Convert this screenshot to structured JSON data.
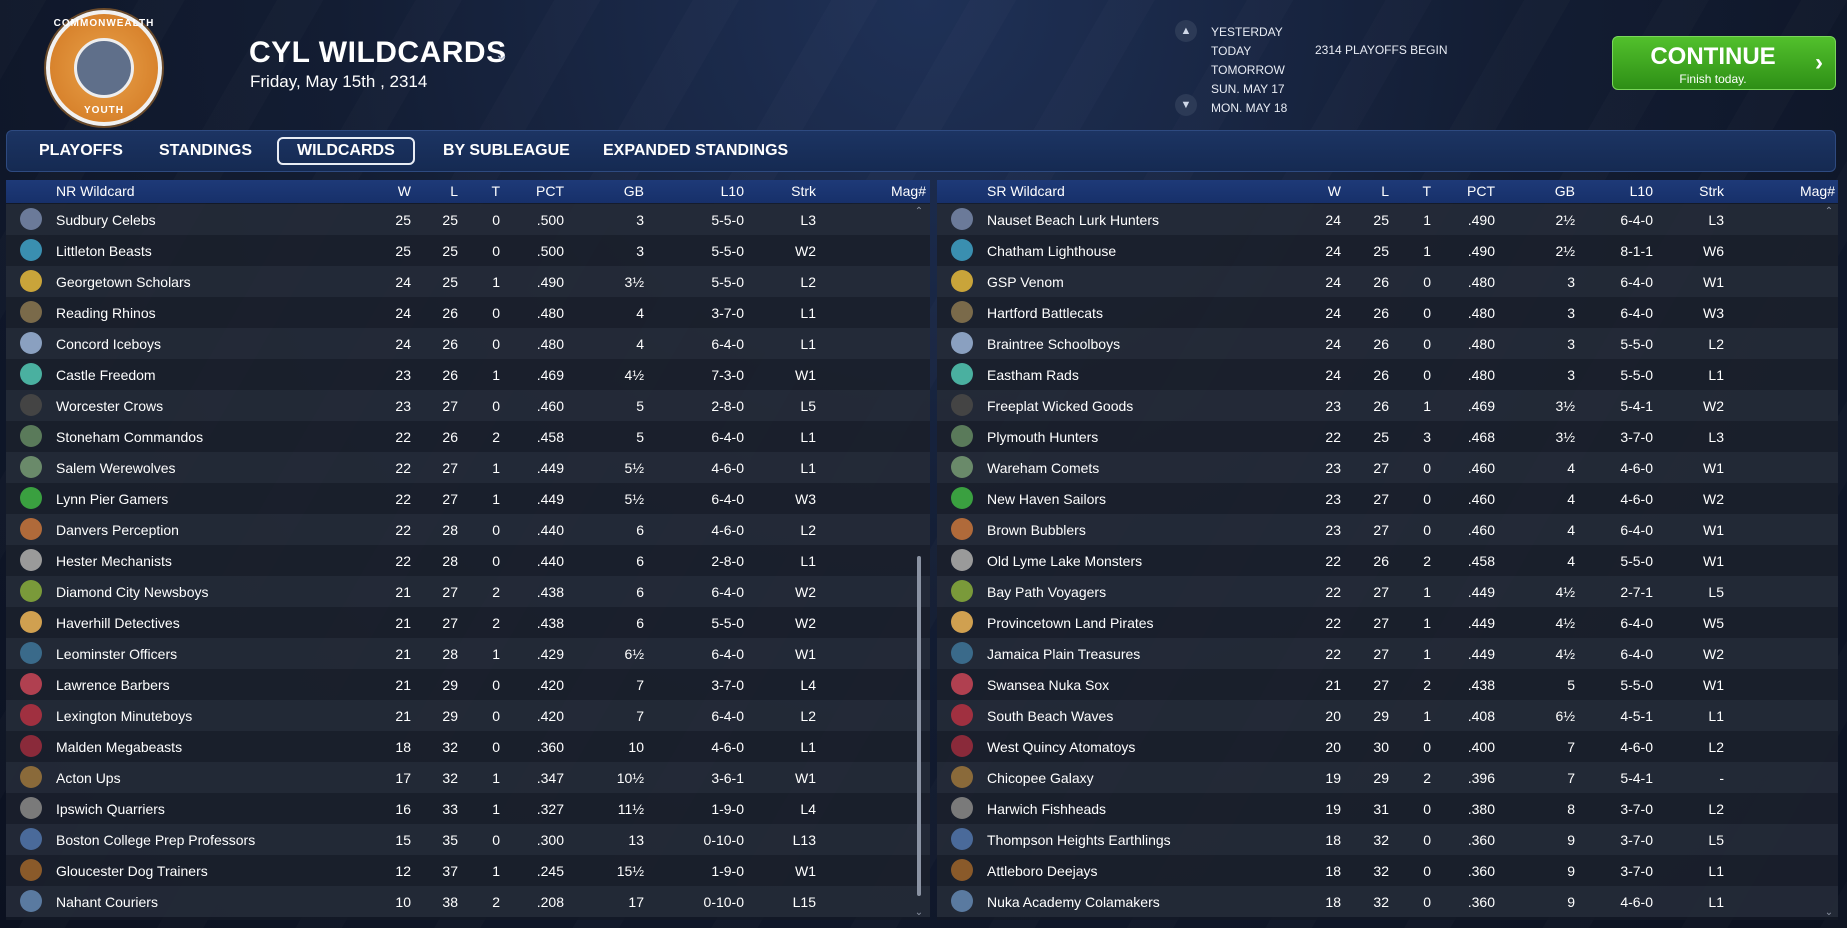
{
  "header": {
    "logo_top": "COMMONWEALTH",
    "logo_bottom": "YOUTH",
    "title": "CYL WILDCARDS",
    "date": "Friday, May 15th , 2314",
    "dates": [
      "YESTERDAY",
      "TODAY",
      "TOMORROW",
      "SUN. MAY 17",
      "MON. MAY 18"
    ],
    "event": "2314 PLAYOFFS BEGIN",
    "continue_label": "CONTINUE",
    "continue_sub": "Finish today."
  },
  "tabs": [
    "PLAYOFFS",
    "STANDINGS",
    "WILDCARDS",
    "BY SUBLEAGUE",
    "EXPANDED STANDINGS"
  ],
  "active_tab": "WILDCARDS",
  "columns": [
    "W",
    "L",
    "T",
    "PCT",
    "GB",
    "L10",
    "Strk",
    "Mag#"
  ],
  "left": {
    "title": "NR  Wildcard",
    "rows": [
      [
        "Sudbury Celebs",
        "25",
        "25",
        "0",
        ".500",
        "3",
        "5-5-0",
        "L3"
      ],
      [
        "Littleton Beasts",
        "25",
        "25",
        "0",
        ".500",
        "3",
        "5-5-0",
        "W2"
      ],
      [
        "Georgetown Scholars",
        "24",
        "25",
        "1",
        ".490",
        "3½",
        "5-5-0",
        "L2"
      ],
      [
        "Reading Rhinos",
        "24",
        "26",
        "0",
        ".480",
        "4",
        "3-7-0",
        "L1"
      ],
      [
        "Concord Iceboys",
        "24",
        "26",
        "0",
        ".480",
        "4",
        "6-4-0",
        "L1"
      ],
      [
        "Castle Freedom",
        "23",
        "26",
        "1",
        ".469",
        "4½",
        "7-3-0",
        "W1"
      ],
      [
        "Worcester Crows",
        "23",
        "27",
        "0",
        ".460",
        "5",
        "2-8-0",
        "L5"
      ],
      [
        "Stoneham Commandos",
        "22",
        "26",
        "2",
        ".458",
        "5",
        "6-4-0",
        "L1"
      ],
      [
        "Salem Werewolves",
        "22",
        "27",
        "1",
        ".449",
        "5½",
        "4-6-0",
        "L1"
      ],
      [
        "Lynn Pier Gamers",
        "22",
        "27",
        "1",
        ".449",
        "5½",
        "6-4-0",
        "W3"
      ],
      [
        "Danvers Perception",
        "22",
        "28",
        "0",
        ".440",
        "6",
        "4-6-0",
        "L2"
      ],
      [
        "Hester Mechanists",
        "22",
        "28",
        "0",
        ".440",
        "6",
        "2-8-0",
        "L1"
      ],
      [
        "Diamond City Newsboys",
        "21",
        "27",
        "2",
        ".438",
        "6",
        "6-4-0",
        "W2"
      ],
      [
        "Haverhill Detectives",
        "21",
        "27",
        "2",
        ".438",
        "6",
        "5-5-0",
        "W2"
      ],
      [
        "Leominster Officers",
        "21",
        "28",
        "1",
        ".429",
        "6½",
        "6-4-0",
        "W1"
      ],
      [
        "Lawrence Barbers",
        "21",
        "29",
        "0",
        ".420",
        "7",
        "3-7-0",
        "L4"
      ],
      [
        "Lexington Minuteboys",
        "21",
        "29",
        "0",
        ".420",
        "7",
        "6-4-0",
        "L2"
      ],
      [
        "Malden Megabeasts",
        "18",
        "32",
        "0",
        ".360",
        "10",
        "4-6-0",
        "L1"
      ],
      [
        "Acton Ups",
        "17",
        "32",
        "1",
        ".347",
        "10½",
        "3-6-1",
        "W1"
      ],
      [
        "Ipswich Quarriers",
        "16",
        "33",
        "1",
        ".327",
        "11½",
        "1-9-0",
        "L4"
      ],
      [
        "Boston College Prep Professors",
        "15",
        "35",
        "0",
        ".300",
        "13",
        "0-10-0",
        "L13"
      ],
      [
        "Gloucester Dog Trainers",
        "12",
        "37",
        "1",
        ".245",
        "15½",
        "1-9-0",
        "W1"
      ],
      [
        "Nahant Couriers",
        "10",
        "38",
        "2",
        ".208",
        "17",
        "0-10-0",
        "L15"
      ]
    ]
  },
  "right": {
    "title": "SR  Wildcard",
    "rows": [
      [
        "Nauset Beach Lurk Hunters",
        "24",
        "25",
        "1",
        ".490",
        "2½",
        "6-4-0",
        "L3"
      ],
      [
        "Chatham Lighthouse",
        "24",
        "25",
        "1",
        ".490",
        "2½",
        "8-1-1",
        "W6"
      ],
      [
        "GSP Venom",
        "24",
        "26",
        "0",
        ".480",
        "3",
        "6-4-0",
        "W1"
      ],
      [
        "Hartford Battlecats",
        "24",
        "26",
        "0",
        ".480",
        "3",
        "6-4-0",
        "W3"
      ],
      [
        "Braintree Schoolboys",
        "24",
        "26",
        "0",
        ".480",
        "3",
        "5-5-0",
        "L2"
      ],
      [
        "Eastham Rads",
        "24",
        "26",
        "0",
        ".480",
        "3",
        "5-5-0",
        "L1"
      ],
      [
        "Freeplat Wicked Goods",
        "23",
        "26",
        "1",
        ".469",
        "3½",
        "5-4-1",
        "W2"
      ],
      [
        "Plymouth Hunters",
        "22",
        "25",
        "3",
        ".468",
        "3½",
        "3-7-0",
        "L3"
      ],
      [
        "Wareham Comets",
        "23",
        "27",
        "0",
        ".460",
        "4",
        "4-6-0",
        "W1"
      ],
      [
        "New Haven Sailors",
        "23",
        "27",
        "0",
        ".460",
        "4",
        "4-6-0",
        "W2"
      ],
      [
        "Brown Bubblers",
        "23",
        "27",
        "0",
        ".460",
        "4",
        "6-4-0",
        "W1"
      ],
      [
        "Old Lyme Lake Monsters",
        "22",
        "26",
        "2",
        ".458",
        "4",
        "5-5-0",
        "W1"
      ],
      [
        "Bay Path Voyagers",
        "22",
        "27",
        "1",
        ".449",
        "4½",
        "2-7-1",
        "L5"
      ],
      [
        "Provincetown Land Pirates",
        "22",
        "27",
        "1",
        ".449",
        "4½",
        "6-4-0",
        "W5"
      ],
      [
        "Jamaica Plain Treasures",
        "22",
        "27",
        "1",
        ".449",
        "4½",
        "6-4-0",
        "W2"
      ],
      [
        "Swansea Nuka Sox",
        "21",
        "27",
        "2",
        ".438",
        "5",
        "5-5-0",
        "W1"
      ],
      [
        "South Beach Waves",
        "20",
        "29",
        "1",
        ".408",
        "6½",
        "4-5-1",
        "L1"
      ],
      [
        "West Quincy Atomatoys",
        "20",
        "30",
        "0",
        ".400",
        "7",
        "4-6-0",
        "L2"
      ],
      [
        "Chicopee Galaxy",
        "19",
        "29",
        "2",
        ".396",
        "7",
        "5-4-1",
        "-"
      ],
      [
        "Harwich Fishheads",
        "19",
        "31",
        "0",
        ".380",
        "8",
        "3-7-0",
        "L2"
      ],
      [
        "Thompson Heights Earthlings",
        "18",
        "32",
        "0",
        ".360",
        "9",
        "3-7-0",
        "L5"
      ],
      [
        "Attleboro Deejays",
        "18",
        "32",
        "0",
        ".360",
        "9",
        "3-7-0",
        "L1"
      ],
      [
        "Nuka Academy Colamakers",
        "18",
        "32",
        "0",
        ".360",
        "9",
        "4-6-0",
        "L1"
      ]
    ]
  },
  "colors": {
    "accent_green": "#3fae22",
    "header_blue": "#1e3a78",
    "logo_orange": "#d8832d"
  }
}
